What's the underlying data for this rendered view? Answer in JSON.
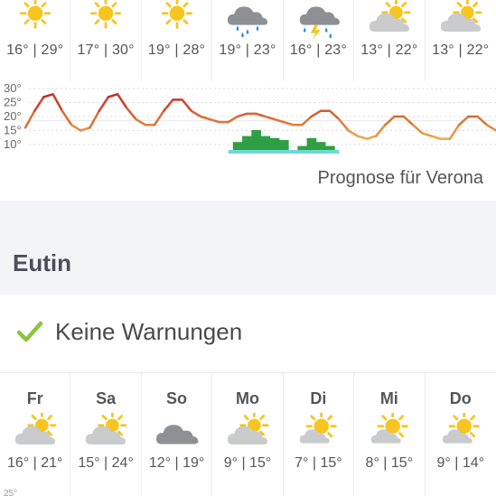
{
  "forecast_top": {
    "days": [
      {
        "temps": "16° | 29°",
        "icon": "sun-icon"
      },
      {
        "temps": "17° | 30°",
        "icon": "sun-icon"
      },
      {
        "temps": "19° | 28°",
        "icon": "sun-icon"
      },
      {
        "temps": "19° | 23°",
        "icon": "rain-cloud-icon"
      },
      {
        "temps": "16° | 23°",
        "icon": "thunderstorm-icon"
      },
      {
        "temps": "13° | 22°",
        "icon": "partly-cloudy-icon"
      },
      {
        "temps": "13° | 22°",
        "icon": "partly-cloudy-icon"
      }
    ],
    "location_label": "Prognose für Verona"
  },
  "chart_data": {
    "type": "line",
    "y_ticks": [
      "30°",
      "25°",
      "20°",
      "15°",
      "10°"
    ],
    "ylim": [
      8,
      31
    ],
    "temperature_series": [
      16,
      22,
      27,
      28,
      22,
      17,
      15,
      16,
      22,
      27,
      28,
      23,
      19,
      17,
      17,
      22,
      26,
      26,
      22,
      20,
      19,
      18,
      18,
      20,
      21,
      21,
      20,
      19,
      18,
      17,
      17,
      20,
      22,
      22,
      19,
      15,
      13,
      12,
      13,
      17,
      20,
      20,
      17,
      14,
      13,
      12,
      12,
      17,
      20,
      20,
      17,
      15
    ],
    "precipitation_bars": [
      0,
      0,
      0,
      0,
      0,
      0,
      0,
      0,
      0,
      0,
      0,
      0,
      0,
      0,
      0,
      0,
      0,
      0,
      0,
      0,
      0,
      0,
      0,
      0.4,
      0.7,
      1.0,
      0.7,
      0.6,
      0.5,
      0,
      0.2,
      0.6,
      0.4,
      0.2,
      0,
      0,
      0,
      0,
      0,
      0,
      0,
      0,
      0,
      0,
      0,
      0,
      0,
      0,
      0,
      0,
      0,
      0
    ],
    "grid": true
  },
  "city": {
    "name": "Eutin"
  },
  "warnings": {
    "text": "Keine Warnungen"
  },
  "week": [
    {
      "day": "Fr",
      "temps": "16° | 21°",
      "icon": "partly-cloudy-icon"
    },
    {
      "day": "Sa",
      "temps": "15° | 24°",
      "icon": "partly-cloudy-icon"
    },
    {
      "day": "So",
      "temps": "12° | 19°",
      "icon": "cloud-icon"
    },
    {
      "day": "Mo",
      "temps": "9° | 15°",
      "icon": "partly-cloudy-icon"
    },
    {
      "day": "Di",
      "temps": "7° | 15°",
      "icon": "mostly-sunny-icon"
    },
    {
      "day": "Mi",
      "temps": "8° | 15°",
      "icon": "mostly-sunny-icon"
    },
    {
      "day": "Do",
      "temps": "9° | 14°",
      "icon": "mostly-sunny-icon"
    }
  ],
  "week_axis_hint": "25°",
  "colors": {
    "sun": "#f7c520",
    "cloud": "#c9cbcd",
    "dark_cloud": "#8e9194",
    "rain": "#2f8fd6",
    "check": "#8cc43f",
    "precip_bar": "#2ea043",
    "precip_base": "#6fd9d1"
  }
}
